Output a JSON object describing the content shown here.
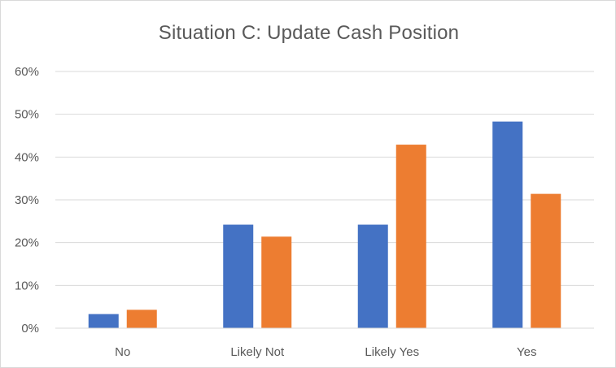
{
  "chart_data": {
    "type": "bar",
    "title": "Situation C: Update Cash Position",
    "categories": [
      "No",
      "Likely Not",
      "Likely Yes",
      "Yes"
    ],
    "series": [
      {
        "color": "#4472c4",
        "values": [
          3.3,
          24.2,
          24.2,
          48.3
        ]
      },
      {
        "color": "#ed7d31",
        "values": [
          4.3,
          21.4,
          42.9,
          31.4
        ]
      }
    ],
    "ylim": [
      0,
      60
    ],
    "yticks": [
      0,
      10,
      20,
      30,
      40,
      50,
      60
    ],
    "ytick_labels": [
      "0%",
      "10%",
      "20%",
      "30%",
      "40%",
      "50%",
      "60%"
    ],
    "grid": true,
    "legend": "none"
  }
}
